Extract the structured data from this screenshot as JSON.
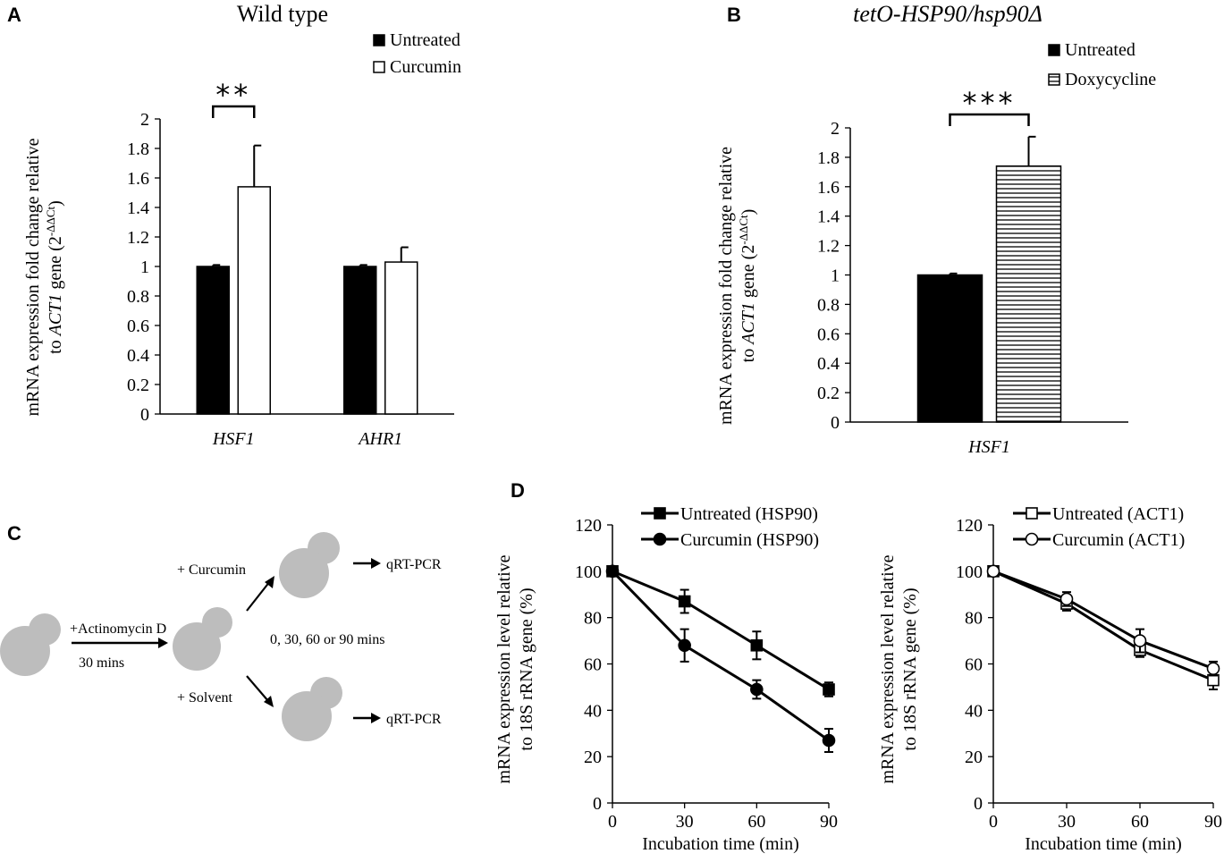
{
  "panels": {
    "A": {
      "label": "A"
    },
    "B": {
      "label": "B"
    },
    "C": {
      "label": "C",
      "step1": "+Actinomycin D",
      "step1_time": "30 mins",
      "branch_top": "+ Curcumin",
      "branch_bottom": "+ Solvent",
      "timepoints": "0, 30, 60 or 90 mins",
      "readout_top": "qRT-PCR",
      "readout_bottom": "qRT-PCR"
    },
    "D": {
      "label": "D"
    }
  },
  "colors": {
    "black": "#000000",
    "white": "#ffffff",
    "cell_gray": "#bdbdbd"
  },
  "chart_data": [
    {
      "id": "A",
      "type": "bar",
      "title": "Wild type",
      "ylabel_line1": "mRNA expression fold change relative",
      "ylabel_line2_pre": "to ",
      "ylabel_line2_gene": "ACT1",
      "ylabel_line2_post": " gene (2",
      "ylabel_sup": "-ΔΔCt",
      "ylabel_close": ")",
      "ylim": [
        0,
        2
      ],
      "yticks": [
        "0",
        "0.2",
        "0.4",
        "0.6",
        "0.8",
        "1",
        "1.2",
        "1.4",
        "1.6",
        "1.8",
        "2"
      ],
      "categories": [
        "HSF1",
        "AHR1"
      ],
      "series": [
        {
          "name": "Untreated",
          "fill": "solid",
          "values": [
            1.0,
            1.0
          ],
          "errors": [
            0.01,
            0.01
          ]
        },
        {
          "name": "Curcumin",
          "fill": "open",
          "values": [
            1.54,
            1.03
          ],
          "errors": [
            0.28,
            0.1
          ]
        }
      ],
      "significance": {
        "category": "HSF1",
        "label": "**"
      }
    },
    {
      "id": "B",
      "type": "bar",
      "title": "tetO-HSP90/hsp90Δ",
      "ylabel_line1": "mRNA expression fold change relative",
      "ylabel_line2_pre": "to ",
      "ylabel_line2_gene": "ACT1",
      "ylabel_line2_post": " gene (2",
      "ylabel_sup": "-ΔΔCt",
      "ylabel_close": ")",
      "ylim": [
        0,
        2
      ],
      "yticks": [
        "0",
        "0.2",
        "0.4",
        "0.6",
        "0.8",
        "1",
        "1.2",
        "1.4",
        "1.6",
        "1.8",
        "2"
      ],
      "categories": [
        "HSF1"
      ],
      "series": [
        {
          "name": "Untreated",
          "fill": "solid",
          "values": [
            1.0
          ],
          "errors": [
            0.01
          ]
        },
        {
          "name": "Doxycycline",
          "fill": "hatched",
          "values": [
            1.74
          ],
          "errors": [
            0.2
          ]
        }
      ],
      "significance": {
        "category": "HSF1",
        "label": "***"
      }
    },
    {
      "id": "D1",
      "type": "line",
      "xlabel": "Incubation time (min)",
      "ylabel_line1": "mRNA expression level relative",
      "ylabel_line2": "to 18S rRNA gene (%)",
      "x": [
        0,
        30,
        60,
        90
      ],
      "xticks": [
        "0",
        "30",
        "60",
        "90"
      ],
      "ylim": [
        0,
        120
      ],
      "yticks": [
        "0",
        "20",
        "40",
        "60",
        "80",
        "100",
        "120"
      ],
      "series": [
        {
          "name": "Untreated (HSP90)",
          "marker": "square",
          "filled": true,
          "values": [
            100,
            87,
            68,
            49
          ],
          "errors": [
            2,
            5,
            6,
            3
          ]
        },
        {
          "name": "Curcumin (HSP90)",
          "marker": "circle",
          "filled": true,
          "values": [
            100,
            68,
            49,
            27
          ],
          "errors": [
            2,
            7,
            4,
            5
          ]
        }
      ]
    },
    {
      "id": "D2",
      "type": "line",
      "xlabel": "Incubation time (min)",
      "ylabel_line1": "mRNA expression level relative",
      "ylabel_line2": "to 18S rRNA gene (%)",
      "x": [
        0,
        30,
        60,
        90
      ],
      "xticks": [
        "0",
        "30",
        "60",
        "90"
      ],
      "ylim": [
        0,
        120
      ],
      "yticks": [
        "0",
        "20",
        "40",
        "60",
        "80",
        "100",
        "120"
      ],
      "series": [
        {
          "name": "Untreated (ACT1)",
          "marker": "square",
          "filled": false,
          "values": [
            100,
            86,
            66,
            53
          ],
          "errors": [
            1,
            3,
            3,
            4
          ]
        },
        {
          "name": "Curcumin (ACT1)",
          "marker": "circle",
          "filled": false,
          "values": [
            100,
            88,
            70,
            58
          ],
          "errors": [
            1,
            3,
            5,
            3
          ]
        }
      ]
    }
  ]
}
